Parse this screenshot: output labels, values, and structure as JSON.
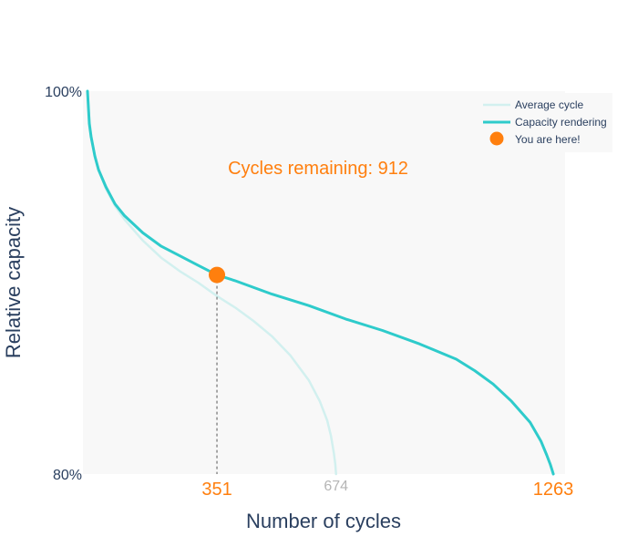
{
  "chart_data": {
    "type": "line",
    "title": "",
    "xlabel": "Number of cycles",
    "ylabel": "Relative capacity",
    "xlim": [
      0,
      1295
    ],
    "ylim": [
      80,
      100
    ],
    "y_tick_labels": [
      "100%",
      "80%"
    ],
    "x_tick_labels": [
      {
        "value": 351,
        "label": "351",
        "color": "#ff7f0e"
      },
      {
        "value": 674,
        "label": "674",
        "color": "#b5b5b5"
      },
      {
        "value": 1263,
        "label": "1263",
        "color": "#ff7f0e"
      }
    ],
    "annotation": {
      "text": "Cycles remaining:  912",
      "color": "#ff7f0e"
    },
    "legend_position": "top-right",
    "grid": false,
    "colors": {
      "plot_bg": "#f8f8f8",
      "average": "#d2f0ef",
      "rendering": "#2ecbcb",
      "marker": "#ff7f0e",
      "axis_text": "#2a3f5f",
      "guide_line": "#555555"
    },
    "series": [
      {
        "name": "Average cycle",
        "x": [
          0,
          5,
          10,
          20,
          30,
          50,
          75,
          100,
          150,
          200,
          250,
          300,
          351,
          400,
          450,
          500,
          550,
          600,
          630,
          650,
          660,
          668,
          672,
          674
        ],
        "y": [
          100,
          98.5,
          97.7,
          96.6,
          95.9,
          94.9,
          94.0,
          93.3,
          92.2,
          91.3,
          90.6,
          90.0,
          89.3,
          88.7,
          88.0,
          87.2,
          86.2,
          84.9,
          83.8,
          82.8,
          82.0,
          81.1,
          80.5,
          80.0
        ]
      },
      {
        "name": "Capacity rendering",
        "x": [
          0,
          5,
          10,
          20,
          30,
          50,
          75,
          100,
          150,
          200,
          250,
          300,
          351,
          400,
          500,
          600,
          700,
          800,
          900,
          1000,
          1050,
          1100,
          1150,
          1200,
          1230,
          1245,
          1255,
          1260,
          1263
        ],
        "y": [
          100,
          98.3,
          97.6,
          96.6,
          95.9,
          95.0,
          94.1,
          93.5,
          92.6,
          91.9,
          91.4,
          90.9,
          90.4,
          90.1,
          89.4,
          88.8,
          88.1,
          87.5,
          86.8,
          86.0,
          85.4,
          84.7,
          83.8,
          82.7,
          81.7,
          81.0,
          80.5,
          80.2,
          80.0
        ]
      },
      {
        "name": "You are here!",
        "mode": "marker",
        "x": [
          351
        ],
        "y": [
          90.4
        ]
      }
    ]
  }
}
